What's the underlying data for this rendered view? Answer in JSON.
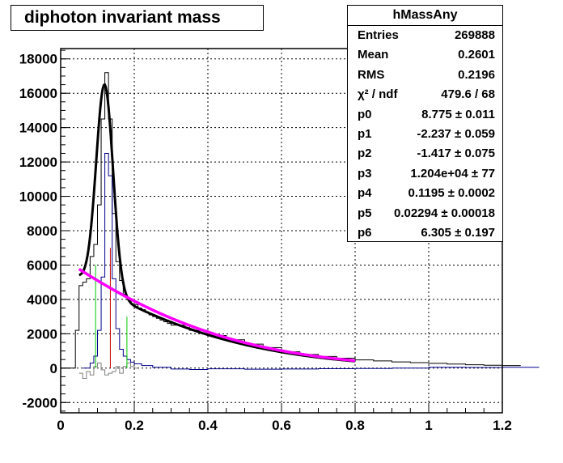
{
  "window": {
    "title": "diphoton invariant mass"
  },
  "stats_box": {
    "title": "hMassAny",
    "rows": [
      {
        "key": "Entries",
        "value": "269888"
      },
      {
        "key": "Mean",
        "value": "0.2601"
      },
      {
        "key": "RMS",
        "value": "0.2196"
      },
      {
        "key": "χ² / ndf",
        "value": "479.6 / 68"
      },
      {
        "key": "p0",
        "value": "8.775 ± 0.011"
      },
      {
        "key": "p1",
        "value": "-2.237 ± 0.059"
      },
      {
        "key": "p2",
        "value": "-1.417 ± 0.075"
      },
      {
        "key": "p3",
        "value": "1.204e+04 ± 77"
      },
      {
        "key": "p4",
        "value": "0.1195 ± 0.0002"
      },
      {
        "key": "p5",
        "value": "0.02294 ± 0.00018"
      },
      {
        "key": "p6",
        "value": "6.305 ± 0.197"
      }
    ]
  },
  "chart_data": {
    "type": "line",
    "title": "diphoton invariant mass",
    "xlabel": "",
    "ylabel": "",
    "xlim": [
      0,
      1.2
    ],
    "ylim": [
      -2600,
      18600
    ],
    "grid": true,
    "x_ticks": [
      "0",
      "0.2",
      "0.4",
      "0.6",
      "0.8",
      "1",
      "1.2"
    ],
    "y_ticks": [
      "-2000",
      "0",
      "2000",
      "4000",
      "6000",
      "8000",
      "10000",
      "12000",
      "14000",
      "16000",
      "18000"
    ],
    "colors": {
      "histogram": "#000000",
      "fit": "#000000",
      "background_fit": "#ff00ff",
      "signal": "#00008b",
      "residual": "#808080",
      "marker_low": "#00cc00",
      "marker_peak": "#cc0000",
      "marker_high": "#00cc00"
    },
    "fit": {
      "p0": 8.775,
      "p1": -2.237,
      "p2": -1.417,
      "p3": 12040,
      "p4": 0.1195,
      "p5": 0.02294,
      "p6": 6.305,
      "range": [
        0.05,
        0.8
      ]
    },
    "markers": [
      {
        "x": 0.095,
        "height": 6000,
        "color": "#00cc00"
      },
      {
        "x": 0.135,
        "height": 7000,
        "color": "#cc0000"
      },
      {
        "x": 0.18,
        "height": 3000,
        "color": "#00cc00"
      }
    ],
    "series": [
      {
        "name": "hMassAny",
        "x": [
          0.0,
          0.01,
          0.02,
          0.03,
          0.04,
          0.05,
          0.06,
          0.07,
          0.08,
          0.09,
          0.1,
          0.11,
          0.12,
          0.13,
          0.14,
          0.15,
          0.16,
          0.17,
          0.18,
          0.19,
          0.2,
          0.21,
          0.22,
          0.23,
          0.24,
          0.25,
          0.26,
          0.27,
          0.28,
          0.29,
          0.3,
          0.35,
          0.4,
          0.45,
          0.5,
          0.55,
          0.6,
          0.65,
          0.7,
          0.75,
          0.8,
          0.85,
          0.9,
          0.95,
          1.0,
          1.05,
          1.1,
          1.15,
          1.2
        ],
        "values": [
          0,
          0,
          0,
          0,
          2200,
          4800,
          5000,
          5200,
          6500,
          7200,
          9500,
          14500,
          17200,
          14500,
          9000,
          6200,
          5100,
          4300,
          4000,
          3900,
          3700,
          3500,
          3400,
          3250,
          3100,
          3000,
          2900,
          2800,
          2700,
          2600,
          2500,
          2200,
          1900,
          1650,
          1400,
          1200,
          950,
          800,
          680,
          580,
          480,
          420,
          360,
          320,
          280,
          240,
          200,
          170,
          150
        ]
      },
      {
        "name": "signal",
        "x": [
          0.06,
          0.07,
          0.08,
          0.09,
          0.1,
          0.11,
          0.12,
          0.13,
          0.14,
          0.15,
          0.16,
          0.17,
          0.18,
          0.19,
          0.2,
          0.22,
          0.25,
          0.3,
          0.35,
          0.4,
          0.5,
          0.6,
          0.7,
          0.8,
          0.9,
          1.0,
          1.1,
          1.2
        ],
        "values": [
          0,
          0,
          300,
          700,
          2200,
          5300,
          12500,
          11200,
          5200,
          2300,
          1100,
          700,
          500,
          350,
          250,
          150,
          50,
          -50,
          -80,
          -40,
          -60,
          -50,
          -30,
          -20,
          0,
          50,
          40,
          50
        ]
      },
      {
        "name": "residual",
        "x": [
          0.05,
          0.06,
          0.07,
          0.08,
          0.09,
          0.1,
          0.11,
          0.12,
          0.13,
          0.14,
          0.15,
          0.16,
          0.17,
          0.18,
          0.19,
          0.2
        ],
        "values": [
          -300,
          -600,
          -200,
          -400,
          100,
          300,
          -100,
          -400,
          -300,
          -200,
          100,
          -300,
          100,
          300,
          100,
          0
        ]
      }
    ]
  }
}
